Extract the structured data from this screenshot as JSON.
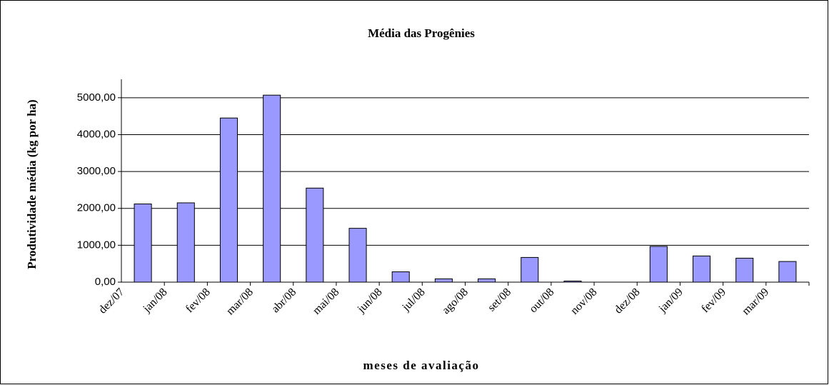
{
  "chart_data": {
    "type": "bar",
    "title": "Média das Progênies",
    "x_label": "meses de avaliação",
    "y_label": "Produtividade média (kg por ha)",
    "categories": [
      "dez/07",
      "jan/08",
      "fev/08",
      "mar/08",
      "abr/08",
      "mai/08",
      "jun/08",
      "jul/08",
      "ago/08",
      "set/08",
      "out/08",
      "nov/08",
      "dez/08",
      "jan/09",
      "fev/09",
      "mar/09"
    ],
    "values": [
      2120,
      2150,
      4450,
      5070,
      2550,
      1460,
      280,
      90,
      90,
      670,
      30,
      0,
      970,
      710,
      650,
      560
    ],
    "color": "#9999ff",
    "ylim": [
      0,
      5500
    ],
    "yticks": [
      {
        "value": 0,
        "label": "0,00"
      },
      {
        "value": 1000,
        "label": "1000,00"
      },
      {
        "value": 2000,
        "label": "2000,00"
      },
      {
        "value": 3000,
        "label": "3000,00"
      },
      {
        "value": 4000,
        "label": "4000,00"
      },
      {
        "value": 5000,
        "label": "5000,00"
      }
    ],
    "grid": true
  }
}
